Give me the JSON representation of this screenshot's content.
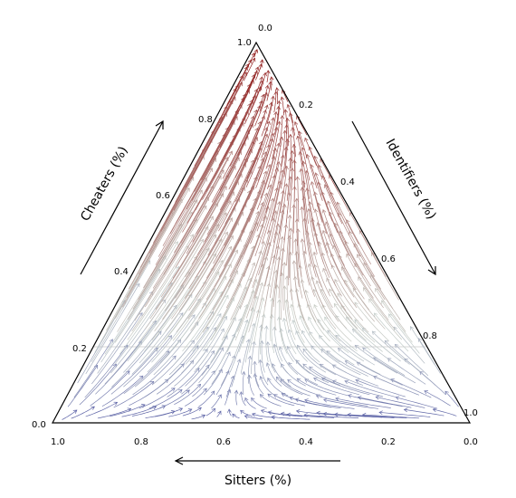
{
  "chart_data": {
    "type": "ternary-vector-field",
    "axes": {
      "bottom": {
        "title": "Sitters (%)",
        "ticks": [
          "1.0",
          "0.8",
          "0.6",
          "0.4",
          "0.2",
          "0.0"
        ]
      },
      "left": {
        "title": "Cheaters (%)",
        "ticks": [
          "0.0",
          "0.2",
          "0.4",
          "0.6",
          "0.8",
          "1.0"
        ]
      },
      "right": {
        "title": "Identifiers (%)",
        "ticks": [
          "0.0",
          "0.2",
          "0.4",
          "0.6",
          "0.8",
          "1.0"
        ]
      }
    },
    "range": [
      0,
      1
    ],
    "grid_lines": [
      0.2
    ],
    "color_map": {
      "low": "#4a50a0",
      "mid": "#c9d3cc",
      "high": "#8b0a0a"
    },
    "color_variable": "Cheaters"
  }
}
